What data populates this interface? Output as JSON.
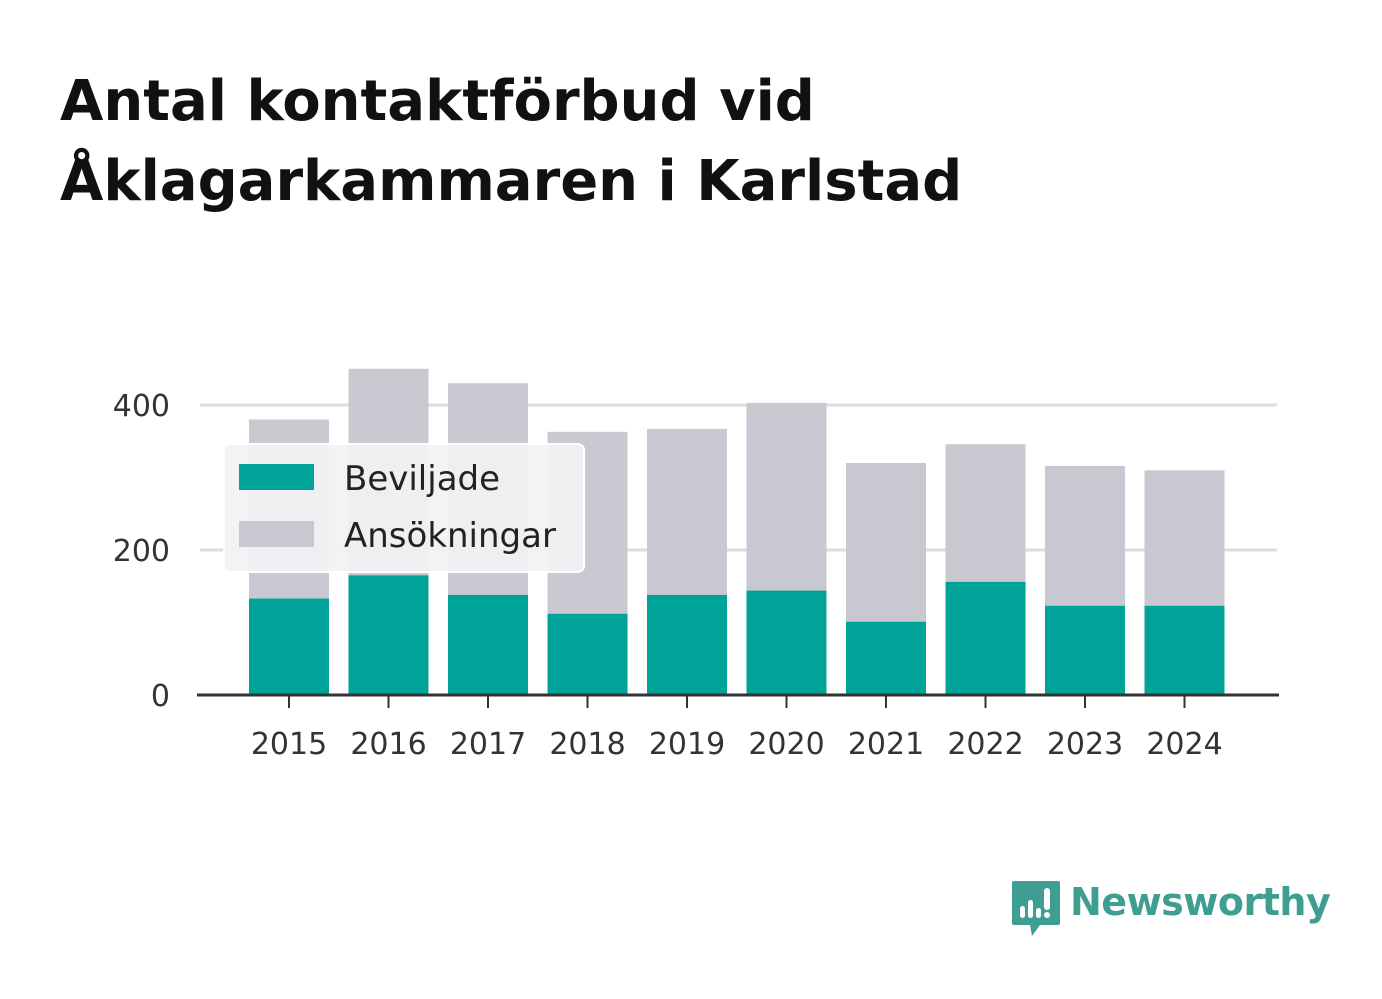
{
  "title_lines": [
    "Antal kontaktförbud vid",
    "Åklagarkammaren i Karlstad"
  ],
  "chart_data": {
    "type": "bar",
    "title": "Antal kontaktförbud vid Åklagarkammaren i Karlstad",
    "categories": [
      "2015",
      "2016",
      "2017",
      "2018",
      "2019",
      "2020",
      "2021",
      "2022",
      "2023",
      "2024"
    ],
    "series": [
      {
        "name": "Beviljade",
        "color": "#00a398",
        "values": [
          133,
          165,
          138,
          112,
          138,
          144,
          101,
          156,
          123,
          123
        ]
      },
      {
        "name": "Ansökningar",
        "color": "#c8c8d0",
        "values": [
          380,
          450,
          430,
          363,
          367,
          403,
          320,
          346,
          316,
          310
        ]
      }
    ],
    "overlay": true,
    "ylim": [
      0,
      450
    ],
    "yticks": [
      0,
      200,
      400
    ],
    "grid": true,
    "legend_position": "top-left",
    "xlabel": "",
    "ylabel": ""
  },
  "brand": {
    "name": "Newsworthy",
    "icon": "newsworthy-logo-icon",
    "color": "#3e9e92"
  }
}
